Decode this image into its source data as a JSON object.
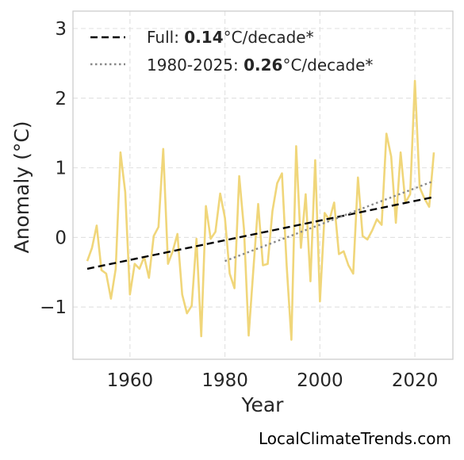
{
  "chart_data": {
    "type": "line",
    "xlabel": "Year",
    "ylabel": "Anomaly (°C)",
    "xlim": [
      1948,
      2028
    ],
    "ylim": [
      -1.75,
      3.25
    ],
    "xticks": [
      1960,
      1980,
      2000,
      2020
    ],
    "yticks": [
      -1,
      0,
      1,
      2,
      3
    ],
    "ytick_labels": [
      "−1",
      "0",
      "1",
      "2",
      "3"
    ],
    "grid": true,
    "legend_position": "top-left",
    "series": [
      {
        "color": "#f0d67a",
        "style": "solid",
        "x": [
          1951,
          1952,
          1953,
          1954,
          1955,
          1956,
          1957,
          1958,
          1959,
          1960,
          1961,
          1962,
          1963,
          1964,
          1965,
          1966,
          1967,
          1968,
          1969,
          1970,
          1971,
          1972,
          1973,
          1974,
          1975,
          1976,
          1977,
          1978,
          1979,
          1980,
          1981,
          1982,
          1983,
          1984,
          1985,
          1986,
          1987,
          1988,
          1989,
          1990,
          1991,
          1992,
          1993,
          1994,
          1995,
          1996,
          1997,
          1998,
          1999,
          2000,
          2001,
          2002,
          2003,
          2004,
          2005,
          2006,
          2007,
          2008,
          2009,
          2010,
          2011,
          2012,
          2013,
          2014,
          2015,
          2016,
          2017,
          2018,
          2019,
          2020,
          2021,
          2022,
          2023,
          2024
        ],
        "y": [
          -0.34,
          -0.15,
          0.17,
          -0.47,
          -0.52,
          -0.88,
          -0.45,
          1.22,
          0.65,
          -0.82,
          -0.38,
          -0.45,
          -0.28,
          -0.58,
          0.02,
          0.15,
          1.27,
          -0.38,
          -0.2,
          0.05,
          -0.82,
          -1.09,
          -0.98,
          -0.02,
          -1.42,
          0.45,
          -0.02,
          0.08,
          0.63,
          0.28,
          -0.52,
          -0.73,
          0.88,
          0.12,
          -1.41,
          -0.45,
          0.48,
          -0.4,
          -0.38,
          0.38,
          0.78,
          0.92,
          -0.4,
          -1.47,
          1.31,
          -0.15,
          0.62,
          -0.63,
          1.11,
          -0.92,
          0.35,
          0.25,
          0.5,
          -0.24,
          -0.2,
          -0.4,
          -0.52,
          0.86,
          0.02,
          -0.03,
          0.1,
          0.26,
          0.18,
          1.49,
          1.16,
          0.21,
          1.22,
          0.5,
          0.62,
          2.25,
          0.72,
          0.56,
          0.44,
          1.22
        ]
      },
      {
        "color": "#000000",
        "style": "dashed",
        "x": [
          1951,
          2024
        ],
        "y": [
          -0.45,
          0.58
        ]
      },
      {
        "color": "#888888",
        "style": "dotted",
        "x": [
          1980,
          2024
        ],
        "y": [
          -0.34,
          0.81
        ]
      }
    ],
    "legend": [
      {
        "prefix": "Full: ",
        "value": "0.14",
        "suffix": "°C/decade*",
        "color": "#000000",
        "style": "dashed"
      },
      {
        "prefix": "1980-2025: ",
        "value": "0.26",
        "suffix": "°C/decade*",
        "color": "#888888",
        "style": "dotted"
      }
    ]
  },
  "watermark": "LocalClimateTrends.com"
}
